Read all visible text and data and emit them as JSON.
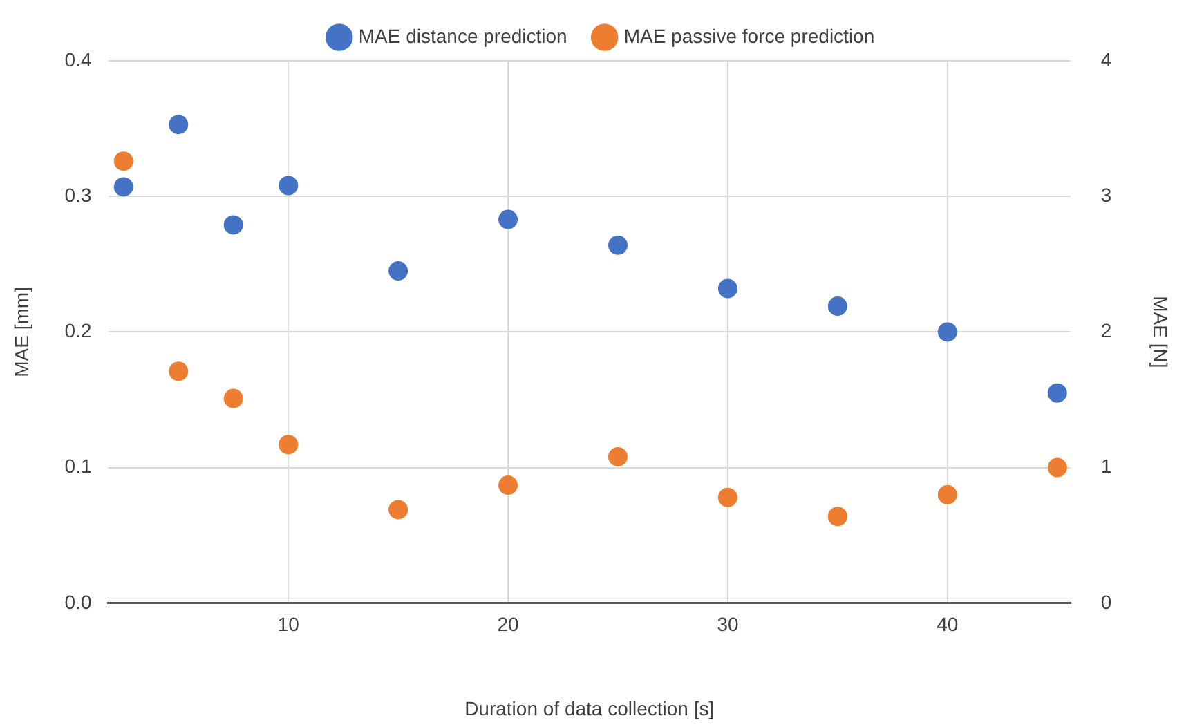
{
  "chart_data": {
    "type": "scatter",
    "xlabel": "Duration of data collection [s]",
    "ylabel": "MAE [mm]",
    "y2label": "MAE [N]",
    "xlim": [
      1.8,
      45.6
    ],
    "xticks": [
      10,
      20,
      30,
      40
    ],
    "ylim": [
      0,
      0.4
    ],
    "yticks": [
      {
        "value": 0,
        "label": "0.0"
      },
      0.1,
      0.2,
      0.3,
      0.4
    ],
    "y2lim": [
      0,
      4
    ],
    "y2ticks": [
      0,
      1,
      2,
      3,
      4
    ],
    "grid": true,
    "legend": "top",
    "marker": "circle",
    "series": [
      {
        "name": "MAE distance prediction",
        "color": "#4472c4",
        "x": [
          2.5,
          5,
          7.5,
          10,
          15,
          20,
          25,
          30,
          35,
          40,
          45
        ],
        "values": [
          0.307,
          0.353,
          0.279,
          0.308,
          0.245,
          0.283,
          0.264,
          0.232,
          0.219,
          0.2,
          0.155
        ]
      },
      {
        "name": "MAE passive force prediction",
        "color": "#ed7d31",
        "axis": "y2",
        "x": [
          2.5,
          5,
          7.5,
          10,
          15,
          20,
          25,
          30,
          35,
          40,
          45
        ],
        "values": [
          3.26,
          1.71,
          1.51,
          1.17,
          0.69,
          0.87,
          1.08,
          0.78,
          0.64,
          0.8,
          1.0
        ]
      }
    ]
  }
}
